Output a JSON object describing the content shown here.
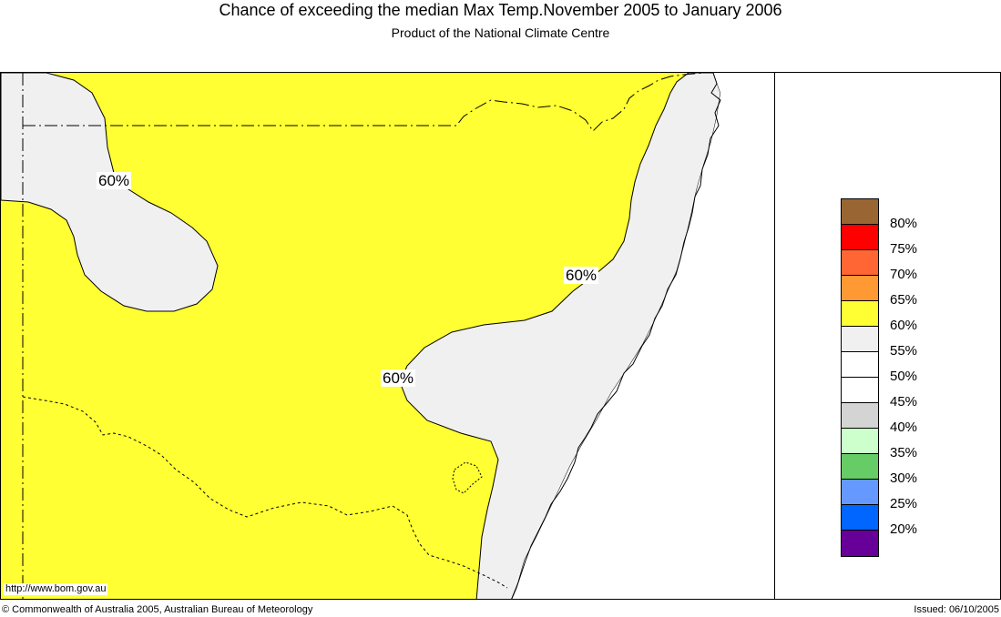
{
  "header": {
    "title": "Chance of exceeding the median Max Temp.November 2005 to January 2006",
    "subtitle": "Product of the National Climate Centre"
  },
  "map": {
    "contour_labels": [
      "60%",
      "60%",
      "60%"
    ],
    "url": "http://www.bom.gov.au",
    "region_colors": {
      "above_60": "#ffff33",
      "range_55_60": "#f0f0f0",
      "sea": "#ffffff"
    }
  },
  "legend": {
    "swatches": [
      {
        "color": "#996633",
        "label": "80%"
      },
      {
        "color": "#ff0000",
        "label": "75%"
      },
      {
        "color": "#ff6633",
        "label": "70%"
      },
      {
        "color": "#ff9933",
        "label": "65%"
      },
      {
        "color": "#ffff33",
        "label": "60%"
      },
      {
        "color": "#f0f0f0",
        "label": "55%"
      },
      {
        "color": "#ffffff",
        "label": "50%"
      },
      {
        "color": "#ffffff",
        "label": "45%"
      },
      {
        "color": "#d4d4d4",
        "label": "40%"
      },
      {
        "color": "#ccffcc",
        "label": "35%"
      },
      {
        "color": "#66cc66",
        "label": "30%"
      },
      {
        "color": "#6699ff",
        "label": "25%"
      },
      {
        "color": "#0066ff",
        "label": "20%"
      },
      {
        "color": "#660099",
        "label": ""
      }
    ]
  },
  "footer": {
    "copyright": "© Commonwealth of Australia 2005, Australian Bureau of Meteorology",
    "issued": "Issued: 06/10/2005"
  }
}
